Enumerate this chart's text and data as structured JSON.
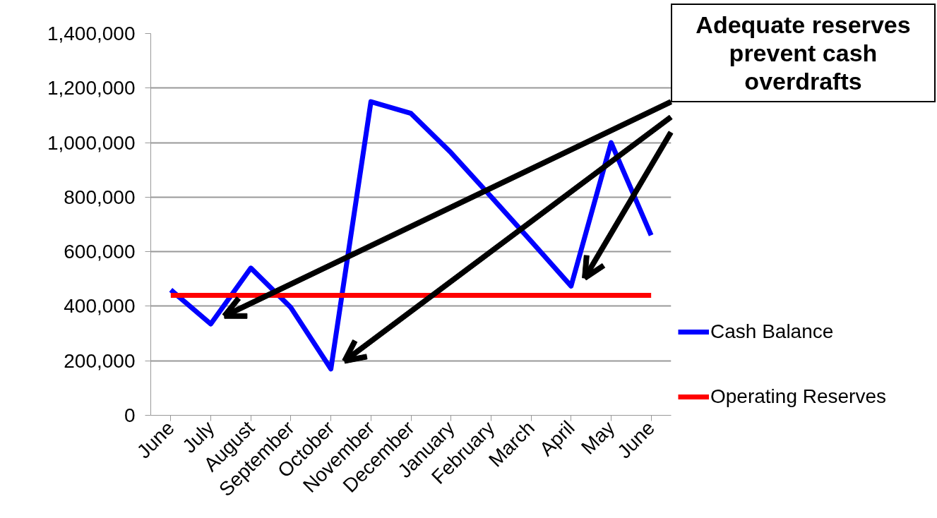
{
  "chart_data": {
    "type": "line",
    "categories": [
      "June",
      "July",
      "August",
      "September",
      "October",
      "November",
      "December",
      "January",
      "February",
      "March",
      "April",
      "May",
      "June"
    ],
    "series": [
      {
        "name": "Cash Balance",
        "color": "#0000ff",
        "values": [
          460000,
          335000,
          540000,
          395000,
          170000,
          1150000,
          1107000,
          963000,
          802000,
          639000,
          474000,
          1000000,
          660000
        ]
      },
      {
        "name": "Operating Reserves",
        "color": "#ff0000",
        "values": [
          440000,
          440000,
          440000,
          440000,
          440000,
          440000,
          440000,
          440000,
          440000,
          440000,
          440000,
          440000,
          440000
        ]
      }
    ],
    "ylim": [
      0,
      1400000
    ],
    "yticks": [
      {
        "value": 0,
        "label": "0"
      },
      {
        "value": 200000,
        "label": "200,000"
      },
      {
        "value": 400000,
        "label": "400,000"
      },
      {
        "value": 600000,
        "label": "600,000"
      },
      {
        "value": 800000,
        "label": "800,000"
      },
      {
        "value": 1000000,
        "label": "1,000,000"
      },
      {
        "value": 1200000,
        "label": "1,200,000"
      },
      {
        "value": 1400000,
        "label": "1,400,000"
      }
    ],
    "annotations": [
      "Adequate reserves prevent cash overdrafts"
    ],
    "grid": "y",
    "legend": "right",
    "marker": "none",
    "line_style": "solid"
  }
}
